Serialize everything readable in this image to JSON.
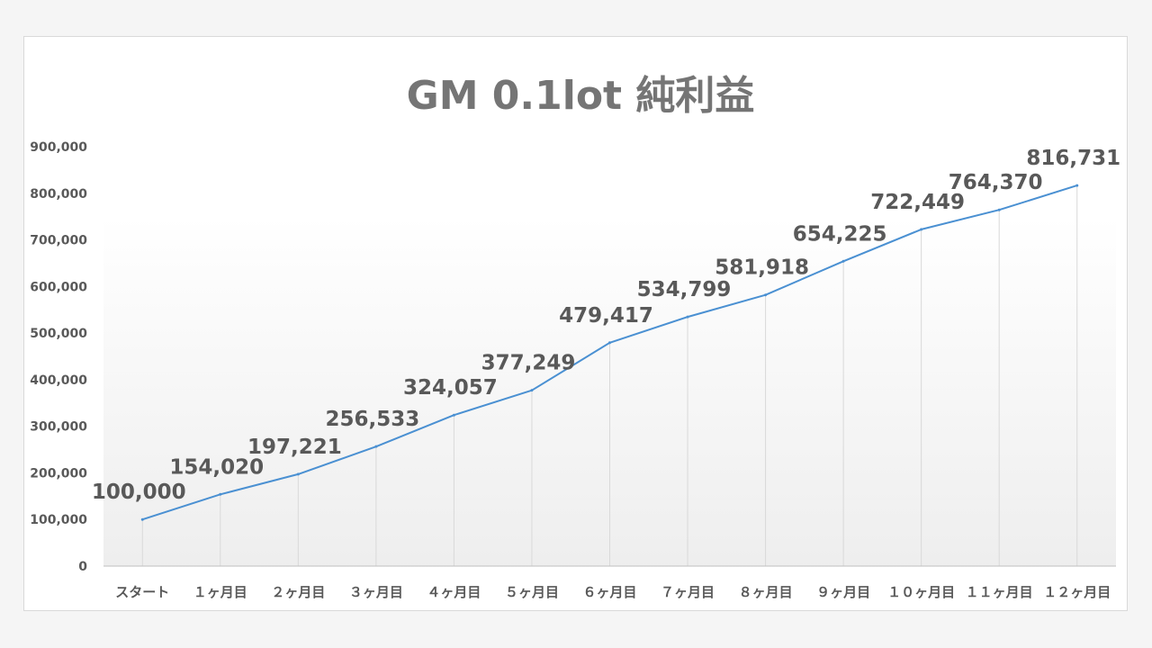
{
  "chart_data": {
    "type": "line",
    "title": "GM 0.1lot 純利益",
    "xlabel": "",
    "ylabel": "",
    "categories": [
      "スタート",
      "１ヶ月目",
      "２ヶ月目",
      "３ヶ月目",
      "４ヶ月目",
      "５ヶ月目",
      "６ヶ月目",
      "７ヶ月目",
      "８ヶ月目",
      "９ヶ月目",
      "１０ヶ月目",
      "１１ヶ月目",
      "１２ヶ月目"
    ],
    "series": [
      {
        "values": [
          100000,
          154020,
          197221,
          256533,
          324057,
          377249,
          479417,
          534799,
          581918,
          654225,
          722449,
          764370,
          816731
        ],
        "labels": [
          "100,000",
          "154,020",
          "197,221",
          "256,533",
          "324,057",
          "377,249",
          "479,417",
          "534,799",
          "581,918",
          "654,225",
          "722,449",
          "764,370",
          "816,731"
        ]
      }
    ],
    "ylim": [
      0,
      900000
    ],
    "yticks": [
      0,
      100000,
      200000,
      300000,
      400000,
      500000,
      600000,
      700000,
      800000,
      900000
    ],
    "ytick_labels": [
      "0",
      "100,000",
      "200,000",
      "300,000",
      "400,000",
      "500,000",
      "600,000",
      "700,000",
      "800,000",
      "900,000"
    ],
    "grid": "vertical",
    "legend": "none",
    "colors": {
      "line": "#4a90d2",
      "grid": "#d9d9d9",
      "axis": "#bfbfbf",
      "text": "#595959",
      "title": "#757575"
    }
  }
}
